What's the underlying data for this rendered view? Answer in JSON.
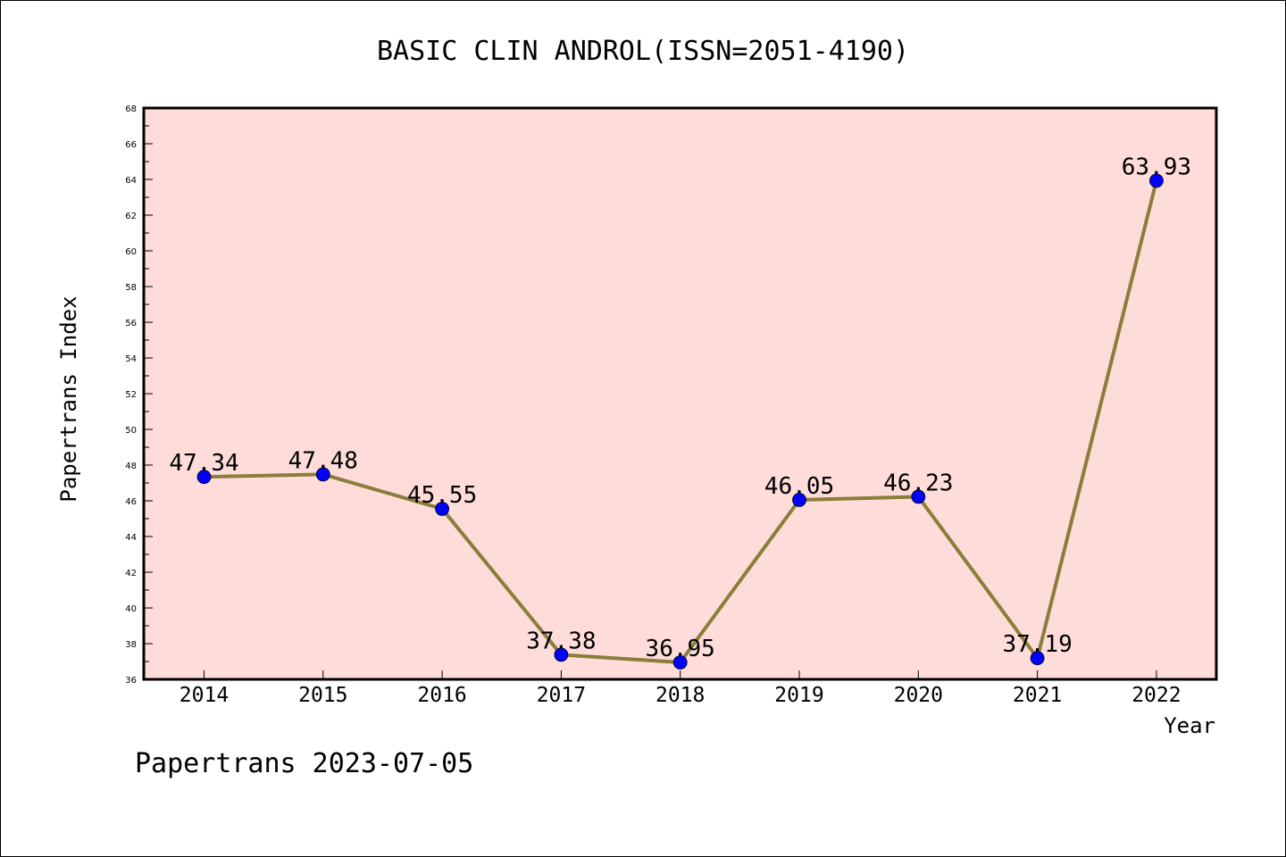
{
  "chart_data": {
    "type": "line",
    "title": "BASIC CLIN ANDROL(ISSN=2051-4190)",
    "xlabel": "Year",
    "ylabel": "Papertrans Index",
    "categories": [
      "2014",
      "2015",
      "2016",
      "2017",
      "2018",
      "2019",
      "2020",
      "2021",
      "2022"
    ],
    "series": [
      {
        "values": [
          47.34,
          47.48,
          45.55,
          37.38,
          36.95,
          46.05,
          46.23,
          37.19,
          63.93
        ],
        "data_labels": [
          "47.34",
          "47.48",
          "45.55",
          "37.38",
          "36.95",
          "46.05",
          "46.23",
          "37.19",
          "63.93"
        ]
      }
    ],
    "ylim": [
      36,
      68
    ],
    "yticks": [
      "36",
      "38",
      "40",
      "42",
      "44",
      "46",
      "48",
      "50",
      "52",
      "54",
      "56",
      "58",
      "60",
      "62",
      "64",
      "66",
      "68"
    ],
    "grid": false,
    "colors": {
      "plot_background": "#fddcda",
      "line": "#8b7d3a",
      "marker": "#0000ff"
    }
  },
  "footer": "Papertrans 2023-07-05"
}
